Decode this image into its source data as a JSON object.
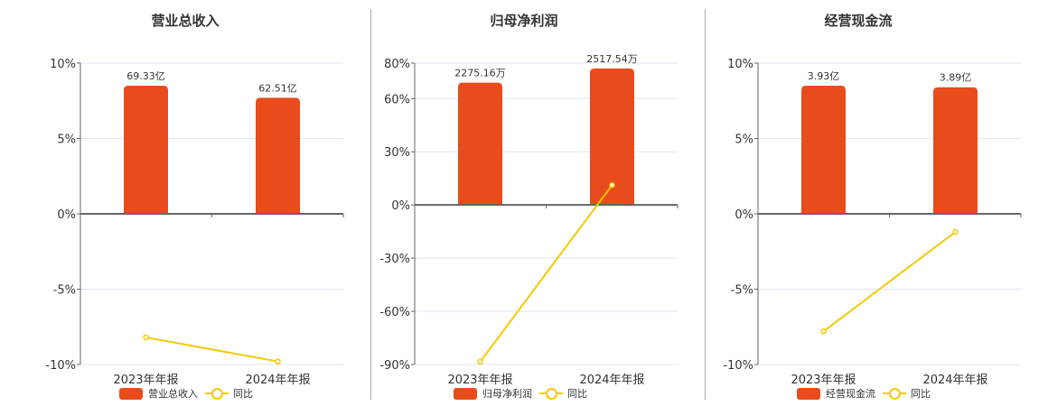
{
  "colors": {
    "bar": "#e84c1c",
    "line": "#f5c900",
    "grid": "#dfe4ee",
    "axis": "#666666"
  },
  "chart_data": [
    {
      "type": "bar+line",
      "title": "营业总收入",
      "categories": [
        "2023年年报",
        "2024年年报"
      ],
      "series": [
        {
          "name": "营业总收入",
          "type": "bar",
          "values": [
            8.5,
            7.7
          ],
          "labels": [
            "69.33亿",
            "62.51亿"
          ]
        },
        {
          "name": "同比",
          "type": "line",
          "values": [
            -8.2,
            -9.8
          ]
        }
      ],
      "yticks": [
        "10%",
        "5%",
        "0%",
        "-5%",
        "-10%"
      ],
      "ylim": [
        -10,
        10
      ],
      "grid": true,
      "legend_position": "bottom"
    },
    {
      "type": "bar+line",
      "title": "归母净利润",
      "categories": [
        "2023年年报",
        "2024年年报"
      ],
      "series": [
        {
          "name": "归母净利润",
          "type": "bar",
          "values": [
            69,
            77
          ],
          "labels": [
            "2275.16万",
            "2517.54万"
          ]
        },
        {
          "name": "同比",
          "type": "line",
          "values": [
            -88.5,
            11.2
          ]
        }
      ],
      "yticks": [
        "80%",
        "60%",
        "30%",
        "0%",
        "-30%",
        "-60%",
        "-90%"
      ],
      "ylim": [
        -90,
        80
      ],
      "grid": true,
      "legend_position": "bottom"
    },
    {
      "type": "bar+line",
      "title": "经营现金流",
      "categories": [
        "2023年年报",
        "2024年年报"
      ],
      "series": [
        {
          "name": "经营现金流",
          "type": "bar",
          "values": [
            8.5,
            8.4
          ],
          "labels": [
            "3.93亿",
            "3.89亿"
          ]
        },
        {
          "name": "同比",
          "type": "line",
          "values": [
            -7.8,
            -1.2
          ]
        }
      ],
      "yticks": [
        "10%",
        "5%",
        "0%",
        "-5%",
        "-10%"
      ],
      "ylim": [
        -10,
        10
      ],
      "grid": true,
      "legend_position": "bottom"
    }
  ],
  "legend": {
    "line_label": "同比"
  }
}
